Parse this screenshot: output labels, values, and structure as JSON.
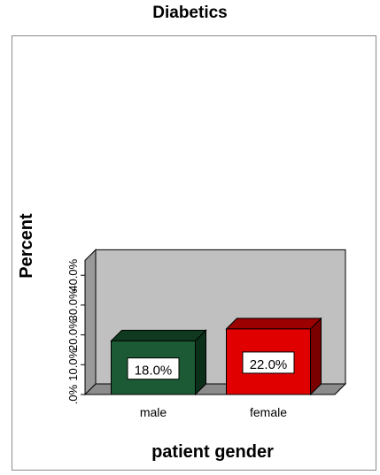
{
  "chart_data": {
    "type": "bar",
    "title": "Diabetics",
    "xlabel": "patient gender",
    "ylabel": "Percent",
    "categories": [
      "male",
      "female"
    ],
    "values": [
      18.0,
      22.0
    ],
    "data_labels": [
      "18.0%",
      "22.0%"
    ],
    "yticks": [
      ".0%",
      "10.0%",
      "20.0%",
      "30.0%",
      "40.0%"
    ],
    "ylim": [
      0,
      45
    ],
    "grid": false,
    "legend": "none",
    "three_d": true,
    "colors": {
      "bars": [
        "#1b5a34",
        "#e00000"
      ],
      "bar_tops": [
        "#0f3a1f",
        "#9c0000"
      ],
      "bar_sides": [
        "#0c2f19",
        "#7a0000"
      ],
      "wall": "#c0c0c0",
      "wall_side": "#9a9a9a",
      "floor": "#8c8c8c"
    }
  }
}
